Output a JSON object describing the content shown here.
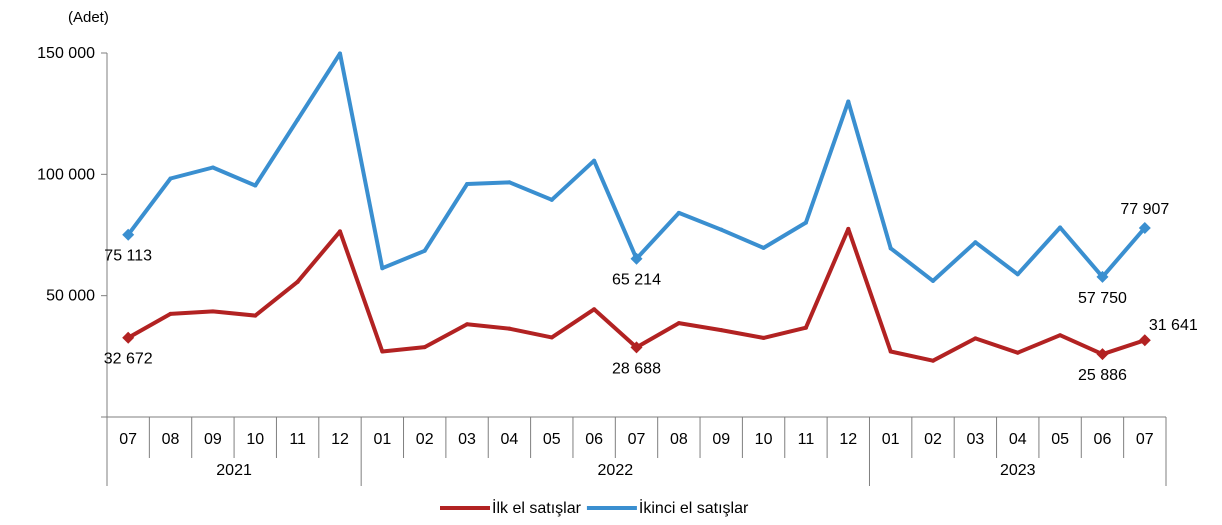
{
  "chart_data": {
    "type": "line",
    "unit_label": "(Adet)",
    "ylim": [
      0,
      150000
    ],
    "yticks": [
      {
        "value": 50000,
        "label": "50 000"
      },
      {
        "value": 100000,
        "label": "100 000"
      },
      {
        "value": 150000,
        "label": "150 000"
      }
    ],
    "categories": [
      "07",
      "08",
      "09",
      "10",
      "11",
      "12",
      "01",
      "02",
      "03",
      "04",
      "05",
      "06",
      "07",
      "08",
      "09",
      "10",
      "11",
      "12",
      "01",
      "02",
      "03",
      "04",
      "05",
      "06",
      "07"
    ],
    "year_groups": [
      {
        "label": "2021",
        "start": 0,
        "end": 5
      },
      {
        "label": "2022",
        "start": 6,
        "end": 17
      },
      {
        "label": "2023",
        "start": 18,
        "end": 24
      }
    ],
    "series": [
      {
        "name": "İlk el satışlar",
        "color": "#b22222",
        "values": [
          32672,
          42500,
          43500,
          41800,
          55700,
          76500,
          27000,
          28800,
          38200,
          36400,
          32800,
          44400,
          28688,
          38700,
          35800,
          32600,
          36800,
          77500,
          27000,
          23200,
          32400,
          26500,
          33700,
          25886,
          31641
        ],
        "labels": [
          {
            "index": 0,
            "text": "32 672",
            "pos": "below"
          },
          {
            "index": 12,
            "text": "28 688",
            "pos": "below"
          },
          {
            "index": 23,
            "text": "25 886",
            "pos": "below"
          },
          {
            "index": 24,
            "text": "31 641",
            "pos": "above-right"
          }
        ]
      },
      {
        "name": "İkinci el satışlar",
        "color": "#3a8fd0",
        "values": [
          75113,
          98300,
          102800,
          95400,
          122500,
          149800,
          61300,
          68500,
          96000,
          96700,
          89500,
          105600,
          65214,
          84100,
          77200,
          69700,
          80100,
          130000,
          69500,
          56100,
          72000,
          58800,
          78100,
          57750,
          77907
        ],
        "labels": [
          {
            "index": 0,
            "text": "75 113",
            "pos": "below"
          },
          {
            "index": 12,
            "text": "65 214",
            "pos": "below"
          },
          {
            "index": 23,
            "text": "57 750",
            "pos": "below"
          },
          {
            "index": 24,
            "text": "77 907",
            "pos": "above"
          }
        ]
      }
    ],
    "marker_indices": [
      0,
      12,
      23,
      24
    ],
    "legend_position": "bottom-center",
    "grid": false
  }
}
